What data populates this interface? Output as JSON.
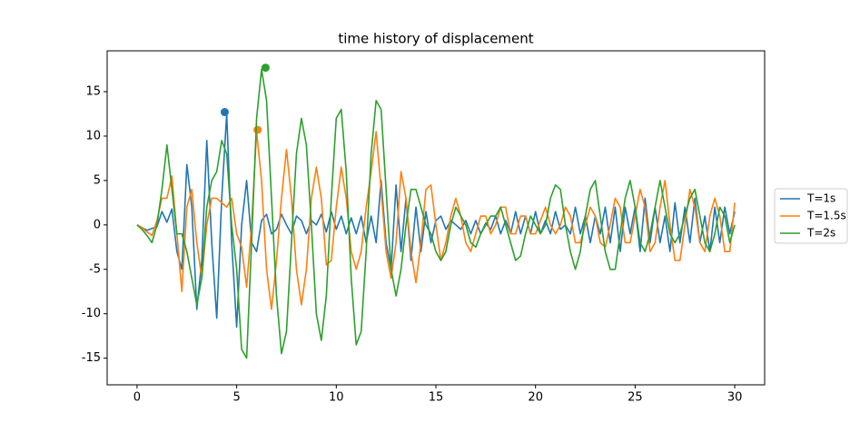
{
  "chart_data": {
    "type": "line",
    "title": "time history of displacement",
    "x": [
      0,
      0.25,
      0.5,
      0.75,
      1,
      1.25,
      1.5,
      1.75,
      2,
      2.25,
      2.5,
      2.75,
      3,
      3.25,
      3.5,
      3.75,
      4,
      4.25,
      4.5,
      4.75,
      5,
      5.25,
      5.5,
      5.75,
      6,
      6.25,
      6.5,
      6.75,
      7,
      7.25,
      7.5,
      7.75,
      8,
      8.25,
      8.5,
      8.75,
      9,
      9.25,
      9.5,
      9.75,
      10,
      10.25,
      10.5,
      10.75,
      11,
      11.25,
      11.5,
      11.75,
      12,
      12.25,
      12.5,
      12.75,
      13,
      13.25,
      13.5,
      13.75,
      14,
      14.25,
      14.5,
      14.75,
      15,
      15.25,
      15.5,
      15.75,
      16,
      16.25,
      16.5,
      16.75,
      17,
      17.25,
      17.5,
      17.75,
      18,
      18.25,
      18.5,
      18.75,
      19,
      19.25,
      19.5,
      19.75,
      20,
      20.25,
      20.5,
      20.75,
      21,
      21.25,
      21.5,
      21.75,
      22,
      22.25,
      22.5,
      22.75,
      23,
      23.25,
      23.5,
      23.75,
      24,
      24.25,
      24.5,
      24.75,
      25,
      25.25,
      25.5,
      25.75,
      26,
      26.25,
      26.5,
      26.75,
      27,
      27.25,
      27.5,
      27.75,
      28,
      28.25,
      28.5,
      28.75,
      29,
      29.25,
      29.5,
      29.75,
      30
    ],
    "series": [
      {
        "name": "T=1s",
        "color": "#1f77b4",
        "peak_x": 4.4,
        "peak_y": 12.7,
        "values": [
          0,
          -0.3,
          -0.6,
          -0.4,
          -0.2,
          1.5,
          0.3,
          1.8,
          -3,
          -5,
          6.8,
          2,
          -9.5,
          -4,
          9.5,
          -2,
          -10.5,
          3,
          12.5,
          -2,
          -11.5,
          0,
          5,
          -2,
          -3,
          0.5,
          1.2,
          -1,
          -0.5,
          1.2,
          0,
          -1,
          1,
          0.5,
          -1,
          0.5,
          0,
          1.2,
          -0.8,
          1.5,
          -0.5,
          1,
          -1,
          0.8,
          -1,
          1,
          -2,
          1,
          -2,
          5,
          -2,
          -5,
          4.5,
          -3,
          3,
          -4,
          2,
          -3,
          1.5,
          -2,
          0.5,
          1,
          -0.5,
          0.5,
          0,
          -0.5,
          0.5,
          -1,
          0.5,
          -1,
          0.2,
          -0.5,
          1,
          -1,
          0.5,
          -1,
          1.5,
          -1,
          1,
          -1,
          1.5,
          -1,
          0.5,
          -1,
          1.5,
          -0.5,
          0,
          -1,
          2,
          -1,
          1,
          -2,
          1,
          -1,
          2,
          -2,
          2,
          -3,
          2,
          -1,
          2,
          -3,
          3,
          -2,
          2,
          -2,
          1,
          -3,
          2.5,
          -2,
          2,
          -2,
          3,
          -2,
          1,
          -3,
          2,
          -2,
          2,
          -1,
          1.5
        ]
      },
      {
        "name": "T=1.5s",
        "color": "#ff7f0e",
        "peak_x": 6.05,
        "peak_y": 10.7,
        "values": [
          0,
          -0.3,
          -0.8,
          -1.2,
          0.5,
          3,
          3,
          5.5,
          -1,
          -7.5,
          2,
          4,
          -2,
          -6,
          0,
          3,
          3,
          2.5,
          2,
          3,
          -1,
          -2.5,
          -7,
          0,
          10.5,
          5,
          -5,
          -9.5,
          -4,
          3,
          8.5,
          3,
          -5,
          -9,
          -5,
          3,
          6.5,
          3,
          -4.5,
          -4,
          2,
          6.5,
          3,
          -3,
          -5,
          -3,
          2,
          6,
          10.5,
          4,
          -3,
          -6,
          -2,
          6,
          3,
          -3,
          -6.5,
          -2,
          4,
          4.5,
          0,
          -4,
          -2,
          1,
          3,
          1,
          -2,
          -3,
          -1,
          1,
          1,
          -1,
          0,
          2,
          2,
          -1,
          -1,
          1,
          1,
          -1,
          -1,
          0.5,
          2,
          0,
          -1,
          0,
          2,
          1,
          -2,
          -2,
          0,
          2,
          1,
          -2,
          -2.5,
          0,
          3,
          2,
          -2,
          -2,
          1,
          4,
          2,
          -3,
          -2,
          2,
          5,
          0,
          -4,
          -4,
          0,
          4,
          2,
          -2,
          -3,
          1,
          3,
          1,
          -3,
          -3,
          2.5
        ]
      },
      {
        "name": "T=2s",
        "color": "#2ca02c",
        "peak_x": 6.45,
        "peak_y": 17.7,
        "values": [
          0,
          -0.5,
          -1.2,
          -2,
          0,
          4,
          9,
          4,
          -1,
          -1,
          -3,
          -6,
          -9,
          -6,
          2,
          5,
          6,
          9.5,
          8,
          0,
          -5,
          -14,
          -15,
          -2,
          12,
          17.5,
          14,
          3,
          -8,
          -14.5,
          -12,
          -2,
          8,
          12,
          9,
          0,
          -10,
          -13,
          -8,
          3,
          12,
          13,
          6,
          -6,
          -13.5,
          -12,
          -3,
          8,
          14,
          13,
          4,
          -5,
          -8,
          -5,
          0,
          4,
          4,
          2,
          0,
          -1,
          -3,
          -4,
          -3,
          0,
          2,
          1,
          0,
          -2,
          -2.5,
          -1,
          0,
          1,
          1,
          2,
          0,
          -2,
          -4,
          -3.5,
          -1,
          1,
          0,
          -1,
          0,
          3,
          4.5,
          4,
          0,
          -3,
          -5,
          -3,
          1,
          4,
          5,
          1,
          -3,
          -5,
          -5,
          -1,
          3,
          5,
          2,
          -2,
          -3,
          -1,
          2,
          5,
          2,
          -1,
          -2,
          -1,
          1,
          3,
          4,
          1,
          -2,
          -3,
          -1,
          2,
          1,
          -2,
          0
        ]
      }
    ],
    "xlim": [
      -1.5,
      31.5
    ],
    "xticks": [
      0,
      5,
      10,
      15,
      20,
      25,
      30
    ],
    "ylim": [
      -18,
      19.6
    ],
    "yticks": [
      -15,
      -10,
      -5,
      0,
      5,
      10,
      15
    ],
    "grid": false,
    "legend": "right"
  }
}
